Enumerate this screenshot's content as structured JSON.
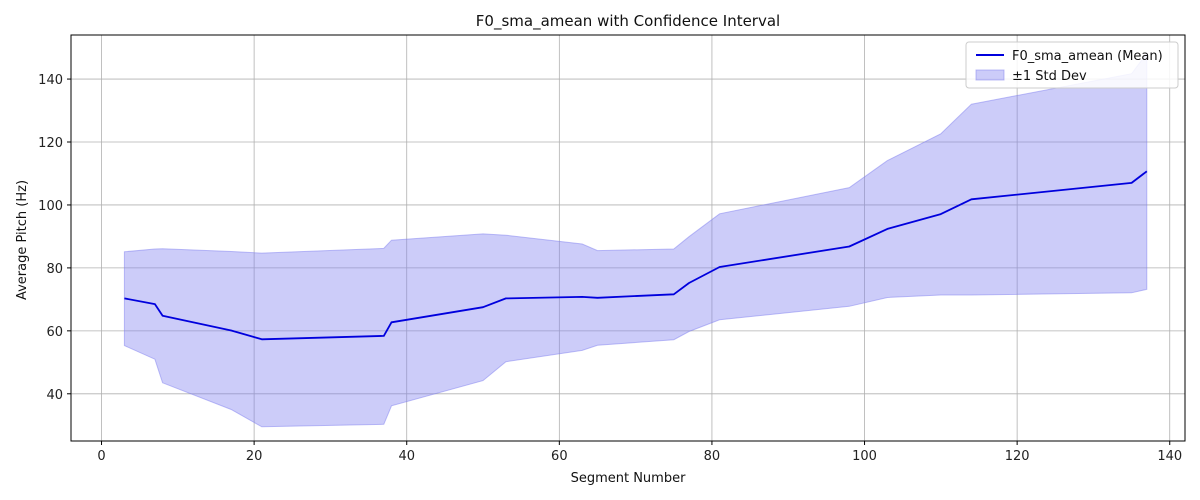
{
  "chart_data": {
    "type": "line",
    "title": "F0_sma_amean with Confidence Interval",
    "xlabel": "Segment Number",
    "ylabel": "Average Pitch (Hz)",
    "xlim": [
      -4,
      142
    ],
    "ylim": [
      25,
      154
    ],
    "xticks": [
      0,
      20,
      40,
      60,
      80,
      100,
      120,
      140
    ],
    "yticks": [
      40,
      60,
      80,
      100,
      120,
      140
    ],
    "grid": true,
    "legend_position": "top-right",
    "x": [
      3,
      7,
      8,
      17,
      21,
      37,
      38,
      50,
      53,
      63,
      65,
      75,
      77,
      81,
      98,
      103,
      110,
      114,
      135,
      137
    ],
    "series": [
      {
        "name": "F0_sma_amean (Mean)",
        "kind": "line",
        "color": "#0000dd",
        "values": [
          70.3,
          68.5,
          64.8,
          60.1,
          57.3,
          58.4,
          62.7,
          67.5,
          70.3,
          70.8,
          70.5,
          71.6,
          75.2,
          80.3,
          86.8,
          92.4,
          97.1,
          101.8,
          107.0,
          110.7
        ]
      },
      {
        "name": "±1 Std Dev",
        "kind": "band",
        "color": "#8080f0",
        "lower": [
          55.3,
          51.0,
          43.5,
          35.0,
          29.5,
          30.3,
          36.2,
          44.2,
          50.2,
          53.8,
          55.4,
          57.2,
          59.8,
          63.5,
          67.8,
          70.6,
          71.4,
          71.4,
          72.1,
          73.2
        ],
        "upper": [
          85.1,
          86.0,
          86.1,
          85.2,
          84.7,
          86.2,
          88.8,
          90.8,
          90.4,
          87.6,
          85.5,
          86.0,
          89.9,
          97.2,
          105.5,
          114.1,
          122.6,
          132.0,
          141.7,
          148.2
        ]
      }
    ]
  }
}
